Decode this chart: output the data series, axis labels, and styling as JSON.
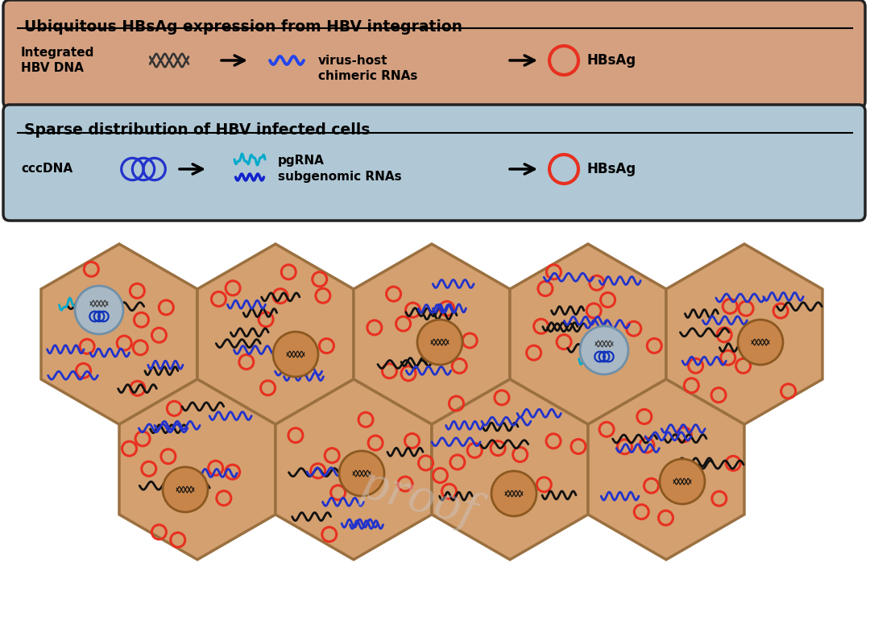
{
  "fig_width": 10.8,
  "fig_height": 7.7,
  "bg_color": "#ffffff",
  "box1_color": "#d4a080",
  "box2_color": "#b0c8d5",
  "box1_title": "Ubiquitous HBsAg expression from HBV integration",
  "box2_title": "Sparse distribution of HBV infected cells",
  "box1_label1": "Integrated\nHBV DNA",
  "box1_label2": "virus-host\nchimeric RNAs",
  "box1_label3": "HBsAg",
  "box2_label1": "cccDNA",
  "box2_label2": "pgRNA",
  "box2_label3": "subgenomic RNAs",
  "box2_label4": "HBsAg",
  "hex_fill": "#d4a070",
  "hex_edge": "#9B7040",
  "nucleus_infected_fill": "#a8b8c5",
  "nucleus_infected_edge": "#7090a8",
  "nucleus_uninfected_fill": "#c8854a",
  "nucleus_uninfected_edge": "#8B5820",
  "hbsag_color": "#e83020",
  "black_wave_color": "#111111",
  "blue_wave_color": "#2233cc",
  "cyan_wave_color": "#00aacc",
  "watermark_color": "#c8c8c8",
  "watermark_alpha": 0.45
}
